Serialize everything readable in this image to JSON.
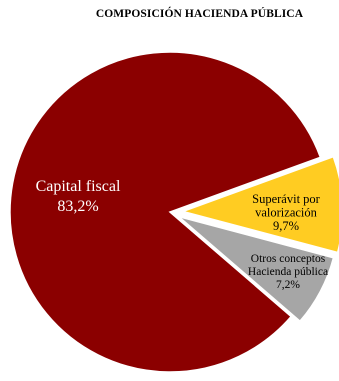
{
  "chart_data": {
    "type": "pie",
    "title": "COMPOSICIÓN HACIENDA PÚBLICA",
    "slices": [
      {
        "label_lines": [
          "Capital fiscal"
        ],
        "value_text": "83,2%",
        "value": 83.2,
        "color": "#8B0000",
        "text_color": "#ffffff"
      },
      {
        "label_lines": [
          "Superávit por",
          "valorización"
        ],
        "value_text": "9,7%",
        "value": 9.7,
        "color": "#FFCC22",
        "text_color": "#000000"
      },
      {
        "label_lines": [
          "Otros conceptos",
          "Hacienda pública"
        ],
        "value_text": "7,2%",
        "value": 7.2,
        "color": "#A6A6A6",
        "text_color": "#000000"
      }
    ],
    "legend": "none"
  }
}
